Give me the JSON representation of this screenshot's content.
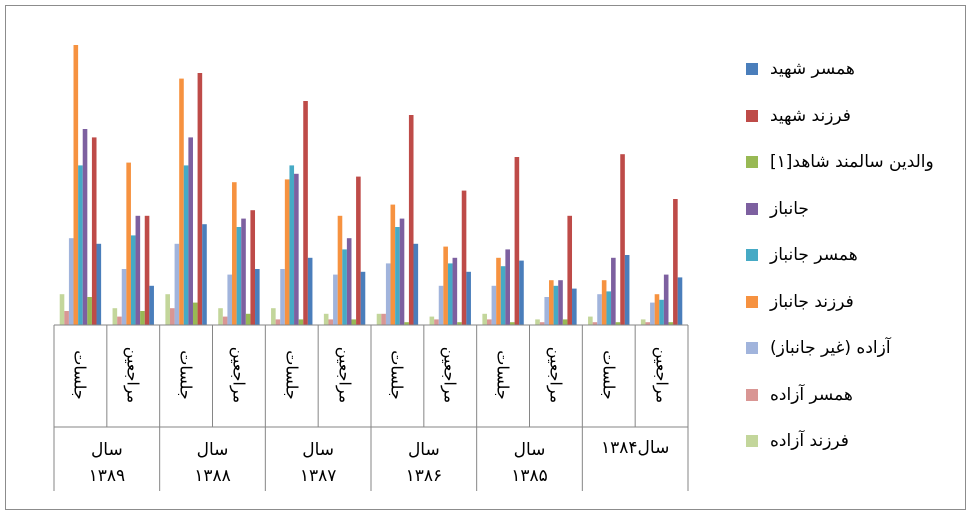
{
  "chart_data": {
    "type": "bar",
    "ylim": [
      0,
      100
    ],
    "grid": false,
    "legend_position": "right",
    "groups": [
      {
        "label": "سال ۱۳۸۹",
        "label_lines": [
          "سال",
          "۱۳۸۹"
        ],
        "subcategories": [
          "جلسات",
          "مراجعین"
        ]
      },
      {
        "label": "سال ۱۳۸۸",
        "label_lines": [
          "سال",
          "۱۳۸۸"
        ],
        "subcategories": [
          "جلسات",
          "مراجعین"
        ]
      },
      {
        "label": "سال ۱۳۸۷",
        "label_lines": [
          "سال",
          "۱۳۸۷"
        ],
        "subcategories": [
          "جلسات",
          "مراجعین"
        ]
      },
      {
        "label": "سال ۱۳۸۶",
        "label_lines": [
          "سال",
          "۱۳۸۶"
        ],
        "subcategories": [
          "جلسات",
          "مراجعین"
        ]
      },
      {
        "label": "سال ۱۳۸۵",
        "label_lines": [
          "سال",
          "۱۳۸۵"
        ],
        "subcategories": [
          "جلسات",
          "مراجعین"
        ]
      },
      {
        "label": "سال۱۳۸۴",
        "label_lines": [
          "سال۱۳۸۴"
        ],
        "subcategories": [
          "جلسات",
          "مراجعین"
        ]
      }
    ],
    "categories": [
      "جلسات",
      "مراجعین",
      "جلسات",
      "مراجعین",
      "جلسات",
      "مراجعین",
      "جلسات",
      "مراجعین",
      "جلسات",
      "مراجعین",
      "جلسات",
      "مراجعین"
    ],
    "series": [
      {
        "name": "همسر شهید",
        "color": "#4a7ebb",
        "values": [
          29,
          14,
          36,
          20,
          24,
          19,
          29,
          19,
          23,
          13,
          25,
          17
        ]
      },
      {
        "name": "فرزند شهید",
        "color": "#be4b48",
        "values": [
          67,
          39,
          90,
          41,
          80,
          53,
          75,
          48,
          60,
          39,
          61,
          45
        ]
      },
      {
        "name": "والدین سالمند شاهد[۱]",
        "color": "#98b954",
        "values": [
          10,
          5,
          8,
          4,
          2,
          2,
          1,
          1,
          1,
          2,
          1,
          1
        ]
      },
      {
        "name": "جانباز",
        "color": "#7d60a0",
        "values": [
          70,
          39,
          67,
          38,
          54,
          31,
          38,
          24,
          27,
          16,
          24,
          18
        ]
      },
      {
        "name": "همسر جانباز",
        "color": "#46aac5",
        "values": [
          57,
          32,
          57,
          35,
          57,
          27,
          35,
          22,
          21,
          14,
          12,
          9
        ]
      },
      {
        "name": "فرزند جانباز",
        "color": "#f69240",
        "values": [
          100,
          58,
          88,
          51,
          52,
          39,
          43,
          28,
          24,
          16,
          16,
          11
        ]
      },
      {
        "name": "آزاده (غیر جانباز)",
        "color": "#a1b4dc",
        "values": [
          31,
          20,
          29,
          18,
          20,
          18,
          22,
          14,
          14,
          10,
          11,
          8
        ]
      },
      {
        "name": "همسر آزاده",
        "color": "#d99694",
        "values": [
          5,
          3,
          6,
          3,
          2,
          2,
          4,
          2,
          2,
          1,
          1,
          1
        ]
      },
      {
        "name": "فرزند آزاده",
        "color": "#c3d69b",
        "values": [
          11,
          6,
          11,
          6,
          6,
          4,
          4,
          3,
          4,
          2,
          3,
          2
        ]
      }
    ]
  }
}
